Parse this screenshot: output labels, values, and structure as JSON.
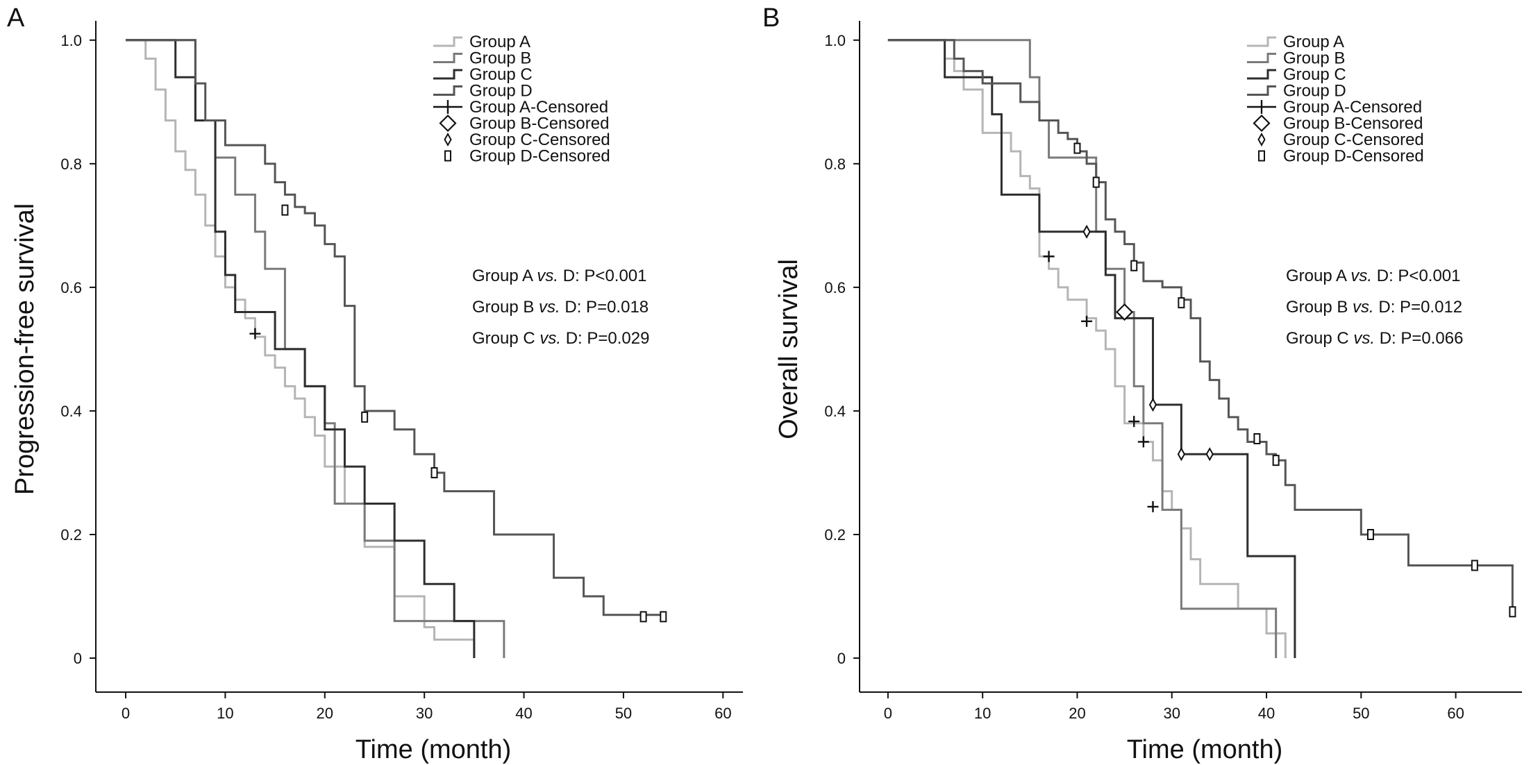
{
  "chart_data": [
    {
      "type": "line",
      "panel_label": "A",
      "xlabel": "Time (month)",
      "ylabel": "Progression-free survival",
      "xlim": [
        -3,
        62
      ],
      "ylim": [
        -0.055,
        1.02
      ],
      "xticks": [
        0,
        10,
        20,
        30,
        40,
        50,
        60
      ],
      "xtick_labels": [
        "0",
        "10",
        "20",
        "30",
        "40",
        "50",
        "60"
      ],
      "yticks": [
        0,
        0.2,
        0.4,
        0.6,
        0.8,
        1.0
      ],
      "ytick_labels": [
        "0",
        "0.2",
        "0.4",
        "0.6",
        "0.8",
        "1.0"
      ],
      "grid": false,
      "legend_position": "top-right",
      "legend": [
        "Group A",
        "Group B",
        "Group C",
        "Group D",
        "Group A-Censored",
        "Group B-Censored",
        "Group C-Censored",
        "Group D-Censored"
      ],
      "annotations": [
        "Group A vs. D: P<0.001",
        "Group B vs. D: P=0.018",
        "Group C vs. D: P=0.029"
      ],
      "series": [
        {
          "name": "Group A",
          "color": "#b5b5b5",
          "x": [
            0,
            2,
            3,
            4,
            5,
            6,
            7,
            8,
            9,
            10,
            11,
            12,
            13,
            14,
            15,
            16,
            17,
            18,
            19,
            20,
            22,
            24,
            27,
            30,
            31,
            35
          ],
          "y": [
            1.0,
            0.97,
            0.92,
            0.87,
            0.82,
            0.79,
            0.75,
            0.7,
            0.65,
            0.6,
            0.58,
            0.55,
            0.52,
            0.49,
            0.47,
            0.44,
            0.42,
            0.39,
            0.36,
            0.31,
            0.25,
            0.18,
            0.1,
            0.05,
            0.03,
            0
          ]
        },
        {
          "name": "Group B",
          "color": "#7a7a7a",
          "x": [
            0,
            7,
            9,
            11,
            13,
            14,
            16,
            18,
            20,
            21,
            24,
            27,
            33,
            38
          ],
          "y": [
            1.0,
            0.87,
            0.81,
            0.75,
            0.69,
            0.63,
            0.5,
            0.44,
            0.38,
            0.25,
            0.19,
            0.06,
            0.06,
            0
          ]
        },
        {
          "name": "Group C",
          "color": "#2e2e2e",
          "x": [
            0,
            5,
            6,
            7,
            9,
            10,
            11,
            15,
            18,
            20,
            22,
            24,
            27,
            30,
            33,
            35
          ],
          "y": [
            1.0,
            0.94,
            0.94,
            0.87,
            0.69,
            0.62,
            0.56,
            0.5,
            0.44,
            0.37,
            0.31,
            0.25,
            0.19,
            0.12,
            0.06,
            0
          ]
        },
        {
          "name": "Group D",
          "color": "#555555",
          "x": [
            0,
            7,
            8,
            10,
            13,
            14,
            15,
            16,
            17,
            18,
            19,
            20,
            21,
            22,
            23,
            24,
            27,
            29,
            31,
            32,
            34,
            37,
            43,
            44,
            46,
            48,
            53,
            54
          ],
          "y": [
            1.0,
            0.93,
            0.87,
            0.83,
            0.83,
            0.8,
            0.77,
            0.75,
            0.73,
            0.72,
            0.7,
            0.67,
            0.65,
            0.57,
            0.44,
            0.4,
            0.37,
            0.33,
            0.3,
            0.27,
            0.27,
            0.2,
            0.13,
            0.13,
            0.1,
            0.07,
            0.07,
            0.07
          ]
        }
      ],
      "censored": [
        {
          "series": "Group A",
          "marker": "plus",
          "points": [
            [
              13,
              0.525
            ]
          ]
        },
        {
          "series": "Group D",
          "marker": "rect",
          "points": [
            [
              16,
              0.725
            ],
            [
              24,
              0.39
            ],
            [
              31,
              0.3
            ],
            [
              52,
              0.067
            ],
            [
              54,
              0.067
            ]
          ]
        }
      ]
    },
    {
      "type": "line",
      "panel_label": "B",
      "xlabel": "Time (month)",
      "ylabel": "Overall survival",
      "xlim": [
        -3,
        67
      ],
      "ylim": [
        -0.055,
        1.02
      ],
      "xticks": [
        0,
        10,
        20,
        30,
        40,
        50,
        60
      ],
      "xtick_labels": [
        "0",
        "10",
        "20",
        "30",
        "40",
        "50",
        "60"
      ],
      "yticks": [
        0,
        0.2,
        0.4,
        0.6,
        0.8,
        1.0
      ],
      "ytick_labels": [
        "0",
        "0.2",
        "0.4",
        "0.6",
        "0.8",
        "1.0"
      ],
      "grid": false,
      "legend_position": "top-right",
      "legend": [
        "Group A",
        "Group B",
        "Group C",
        "Group D",
        "Group A-Censored",
        "Group B-Censored",
        "Group C-Censored",
        "Group D-Censored"
      ],
      "annotations": [
        "Group A vs. D: P<0.001",
        "Group B vs. D: P=0.012",
        "Group C vs. D: P=0.066"
      ],
      "series": [
        {
          "name": "Group A",
          "color": "#b5b5b5",
          "x": [
            0,
            6,
            7,
            8,
            10,
            13,
            14,
            15,
            16,
            17,
            18,
            19,
            21,
            22,
            23,
            24,
            25,
            26,
            27,
            28,
            29,
            30,
            31,
            32,
            33,
            37,
            40,
            41,
            42
          ],
          "y": [
            1.0,
            0.97,
            0.95,
            0.92,
            0.85,
            0.82,
            0.78,
            0.76,
            0.65,
            0.63,
            0.6,
            0.58,
            0.55,
            0.53,
            0.5,
            0.44,
            0.38,
            0.38,
            0.35,
            0.32,
            0.27,
            0.24,
            0.21,
            0.16,
            0.12,
            0.08,
            0.04,
            0.04,
            0
          ]
        },
        {
          "name": "Group B",
          "color": "#7a7a7a",
          "x": [
            0,
            15,
            16,
            17,
            22,
            23,
            25,
            26,
            27,
            29,
            31,
            36,
            41
          ],
          "y": [
            1.0,
            0.94,
            0.87,
            0.81,
            0.69,
            0.63,
            0.56,
            0.44,
            0.38,
            0.24,
            0.08,
            0.08,
            0
          ]
        },
        {
          "name": "Group C",
          "color": "#2e2e2e",
          "x": [
            0,
            6,
            11,
            12,
            16,
            21,
            23,
            24,
            28,
            31,
            38,
            43
          ],
          "y": [
            1.0,
            0.94,
            0.88,
            0.75,
            0.69,
            0.69,
            0.62,
            0.55,
            0.41,
            0.33,
            0.165,
            0
          ]
        },
        {
          "name": "Group D",
          "color": "#555555",
          "x": [
            0,
            7,
            8,
            10,
            14,
            16,
            18,
            19,
            20,
            21,
            22,
            23,
            24,
            25,
            26,
            27,
            29,
            31,
            32,
            33,
            34,
            35,
            36,
            37,
            38,
            40,
            41,
            42,
            43,
            50,
            51,
            55,
            66
          ],
          "y": [
            1.0,
            0.97,
            0.95,
            0.93,
            0.9,
            0.87,
            0.85,
            0.84,
            0.82,
            0.8,
            0.77,
            0.71,
            0.69,
            0.67,
            0.64,
            0.61,
            0.6,
            0.58,
            0.55,
            0.48,
            0.45,
            0.42,
            0.39,
            0.37,
            0.35,
            0.33,
            0.32,
            0.28,
            0.24,
            0.2,
            0.2,
            0.15,
            0.075
          ]
        }
      ],
      "censored": [
        {
          "series": "Group A",
          "marker": "plus",
          "points": [
            [
              17,
              0.65
            ],
            [
              21,
              0.545
            ],
            [
              26,
              0.383
            ],
            [
              27,
              0.35
            ],
            [
              28,
              0.245
            ]
          ]
        },
        {
          "series": "Group B",
          "marker": "diamond-large",
          "points": [
            [
              25,
              0.56
            ]
          ]
        },
        {
          "series": "Group C",
          "marker": "diamond-small",
          "points": [
            [
              21,
              0.69
            ],
            [
              28,
              0.41
            ],
            [
              31,
              0.33
            ],
            [
              34,
              0.33
            ]
          ]
        },
        {
          "series": "Group D",
          "marker": "rect",
          "points": [
            [
              20,
              0.825
            ],
            [
              22,
              0.77
            ],
            [
              26,
              0.635
            ],
            [
              31,
              0.575
            ],
            [
              39,
              0.355
            ],
            [
              41,
              0.32
            ],
            [
              51,
              0.2
            ],
            [
              62,
              0.15
            ],
            [
              66,
              0.075
            ]
          ]
        }
      ]
    }
  ]
}
